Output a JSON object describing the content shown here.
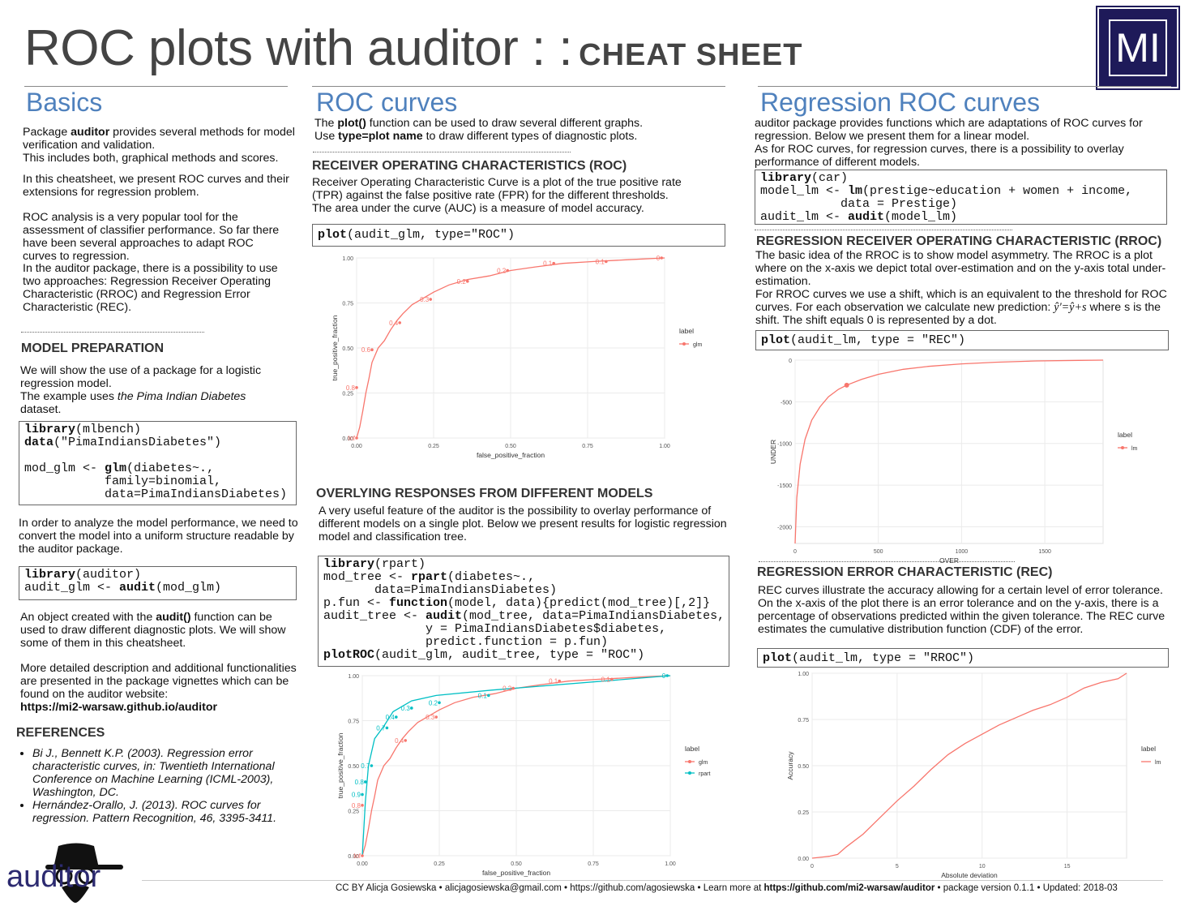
{
  "header": {
    "title": "ROC plots with auditor : :",
    "subtitle": "CHEAT SHEET",
    "logo": "MI"
  },
  "basics": {
    "title": "Basics",
    "p1_pre": "Package ",
    "p1_bold": "auditor",
    "p1_post": " provides several methods for model verification and validation.",
    "p1_line2": "This includes both, graphical methods and scores.",
    "p2": "In this cheatsheet, we present ROC curves and their extensions for regression problem.",
    "p3": "ROC analysis is a very popular tool for the assessment of classifier performance. So far there have been several approaches to adapt ROC curves to regression.",
    "p4": "In the auditor package, there is a possibility to use two approaches: Regression Receiver Operating Characteristic (RROC) and Regression Error Characteristic (REC).",
    "model_prep_title": "MODEL PREPARATION",
    "mp1": "We will show the use of a package for a logistic regression model.",
    "mp2_pre": "The example uses ",
    "mp2_italic": "the Pima Indian Diabetes",
    "mp2_post": " dataset.",
    "code1": [
      "library(mlbench)",
      "data(\"PimaIndiansDiabetes\")",
      "",
      "mod_glm <- glm(diabetes~.,",
      "           family=binomial,",
      "           data=PimaIndiansDiabetes)"
    ],
    "mp3": "In order to analyze the model performance, we need to convert the model into a uniform structure readable by the auditor package.",
    "code2": [
      "library(auditor)",
      "audit_glm <- audit(mod_glm)"
    ],
    "mp4_pre": "An object created with the ",
    "mp4_bold": "audit()",
    "mp4_post": " function can be used to draw different diagnostic plots. We will show some of them in this cheatsheet.",
    "mp5": "More detailed description and additional functionalities are presented in the package vignettes which can be found on the auditor website:",
    "mp5_link": "https://mi2-warsaw.github.io/auditor",
    "refs_title": "REFERENCES",
    "refs": [
      "Bi J., Bennett K.P. (2003). Regression error characteristic curves, in: Twentieth  International Conference on Machine Learning (ICML-2003), Washington, DC.",
      "Hernández-Orallo, J. (2013). ROC curves for regression. Pattern Recognition, 46, 3395-3411."
    ],
    "auditor_logo": "auditor"
  },
  "roc": {
    "title": "ROC curves",
    "p1_pre": "The ",
    "p1_bold": "plot()",
    "p1_post": " function can be used to draw several different graphs.",
    "p2_pre": "Use ",
    "p2_bold": "type=plot name",
    "p2_post": " to draw different types of diagnostic plots.",
    "roc_title": "RECEIVER OPERATING CHARACTERISTICS (ROC)",
    "roc_p": "Receiver Operating Characteristic Curve is a plot of the true positive rate (TPR) against the false positive rate (FPR) for the different thresholds.",
    "roc_p2": "The area under the curve (AUC) is a measure of model accuracy.",
    "code3": "plot(audit_glm, type=\"ROC\")",
    "overlay_title": "OVERLYING RESPONSES FROM DIFFERENT MODELS",
    "overlay_p": "A very useful feature of the auditor is the possibility to overlay performance of different models on a single plot. Below we present results for logistic regression model and classification tree.",
    "code4": [
      "library(rpart)",
      "mod_tree <- rpart(diabetes~.,",
      "       data=PimaIndiansDiabetes)",
      "p.fun <- function(model, data){predict(mod_tree)[,2]}",
      "audit_tree <- audit(mod_tree, data=PimaIndiansDiabetes,",
      "              y = PimaIndiansDiabetes$diabetes,",
      "              predict.function = p.fun)",
      "plotROC(audit_glm, audit_tree, type = \"ROC\")"
    ]
  },
  "regression": {
    "title": "Regression  ROC curves",
    "p1": "auditor package provides functions which are adaptations of ROC curves for regression. Below we present them for a linear model.",
    "p2": "As for ROC curves, for regression curves, there is a possibility to overlay performance of different models.",
    "code5": [
      "library(car)",
      "model_lm <- lm(prestige~education + women + income,",
      "           data = Prestige)",
      "audit_lm <- audit(model_lm)"
    ],
    "rroc_title": "REGRESSION RECEIVER OPERATING CHARACTERISTIC (RROC)",
    "rroc_p": "The basic idea of the RROC is to show model asymmetry. The RROC is a plot where on the x-axis we depict total over-estimation and on the y-axis total under-estimation.",
    "rroc_p2_pre": "For RROC curves we use a shift, which is an equivalent to the threshold for ROC curves. For each observation we calculate new prediction: ",
    "rroc_formula": "ŷ'=ŷ+s",
    "rroc_p2_post": " where s is the shift. The shift equals 0 is represented by a dot.",
    "code6": "plot(audit_lm, type = \"REC\")",
    "rec_title": "REGRESSION ERROR CHARACTERISTIC (REC)",
    "rec_p": "REC curves illustrate the accuracy allowing for a certain level of error tolerance.",
    "rec_p2": "On the x-axis of the plot there is an error tolerance and on the y-axis, there is a percentage of observations predicted within the given tolerance.  The REC curve estimates the cumulative distribution function (CDF) of the error.",
    "code7": "plot(audit_lm, type = \"RROC\")"
  },
  "footer": {
    "text": "CC BY Alicja Gosiewska •  alicjagosiewska@gmail.com • https://github.com/agosiewska •  Learn more at ",
    "link": "https://github.com/mi2-warsaw/auditor",
    "text2": "  •  package version  0.1.1 •  Updated: 2018-03"
  },
  "colors": {
    "glm": "#f8766d",
    "rpart": "#00bfc4",
    "heading": "#4f81bd",
    "logo_bg": "#1e1a59"
  },
  "chart_data": [
    {
      "type": "line",
      "id": "roc1",
      "xlabel": "false_positive_fraction",
      "ylabel": "true_positive_fraction",
      "xlim": [
        0,
        1
      ],
      "ylim": [
        0,
        1
      ],
      "xticks": [
        "0.00",
        "0.25",
        "0.50",
        "0.75",
        "1.00"
      ],
      "yticks": [
        "0.00",
        "0.25",
        "0.50",
        "0.75",
        "1.00"
      ],
      "legend_title": "label",
      "legend_position": "right",
      "series": [
        {
          "name": "glm",
          "color": "#f8766d",
          "x": [
            0,
            0.01,
            0.02,
            0.03,
            0.04,
            0.05,
            0.07,
            0.09,
            0.11,
            0.13,
            0.15,
            0.18,
            0.21,
            0.25,
            0.3,
            0.36,
            0.43,
            0.5,
            0.58,
            0.67,
            0.77,
            0.88,
            1
          ],
          "y": [
            0,
            0.06,
            0.15,
            0.25,
            0.33,
            0.42,
            0.5,
            0.54,
            0.6,
            0.65,
            0.69,
            0.74,
            0.77,
            0.81,
            0.85,
            0.88,
            0.9,
            0.93,
            0.95,
            0.97,
            0.98,
            0.99,
            1
          ]
        }
      ],
      "labels": [
        {
          "text": "Inf",
          "x": 0.0,
          "y": 0.0
        },
        {
          "text": "0.8",
          "x": 0.0,
          "y": 0.28
        },
        {
          "text": "0.6",
          "x": 0.05,
          "y": 0.49
        },
        {
          "text": "0.4",
          "x": 0.14,
          "y": 0.64
        },
        {
          "text": "0.3",
          "x": 0.24,
          "y": 0.77
        },
        {
          "text": "0.2",
          "x": 0.36,
          "y": 0.87
        },
        {
          "text": "0.2",
          "x": 0.49,
          "y": 0.93
        },
        {
          "text": "0.1",
          "x": 0.64,
          "y": 0.97
        },
        {
          "text": "0.1",
          "x": 0.81,
          "y": 0.98
        },
        {
          "text": "0",
          "x": 0.99,
          "y": 1.0
        }
      ]
    },
    {
      "type": "line",
      "id": "roc2",
      "xlabel": "false_positive_fraction",
      "ylabel": "true_positive_fraction",
      "xlim": [
        0,
        1
      ],
      "ylim": [
        0,
        1
      ],
      "xticks": [
        "0.00",
        "0.25",
        "0.50",
        "0.75",
        "1.00"
      ],
      "yticks": [
        "0.00",
        "0.25",
        "0.50",
        "0.75",
        "1.00"
      ],
      "legend_title": "label",
      "legend_position": "right",
      "series": [
        {
          "name": "glm",
          "color": "#f8766d",
          "x": [
            0,
            0.01,
            0.02,
            0.03,
            0.04,
            0.05,
            0.07,
            0.09,
            0.11,
            0.13,
            0.15,
            0.18,
            0.21,
            0.25,
            0.3,
            0.36,
            0.43,
            0.5,
            0.58,
            0.67,
            0.77,
            0.88,
            1
          ],
          "y": [
            0,
            0.06,
            0.15,
            0.25,
            0.33,
            0.42,
            0.5,
            0.54,
            0.6,
            0.65,
            0.69,
            0.74,
            0.77,
            0.81,
            0.85,
            0.88,
            0.9,
            0.93,
            0.95,
            0.97,
            0.98,
            0.99,
            1
          ]
        },
        {
          "name": "rpart",
          "color": "#00bfc4",
          "x": [
            0,
            0.01,
            0.02,
            0.04,
            0.07,
            0.1,
            0.16,
            0.24,
            0.42,
            1.0
          ],
          "y": [
            0,
            0.3,
            0.5,
            0.65,
            0.72,
            0.8,
            0.86,
            0.89,
            0.92,
            1.0
          ]
        }
      ],
      "labels": [
        {
          "text": "Inf",
          "x": 0.0,
          "y": 0.0,
          "color": "#f8766d"
        },
        {
          "text": "0.8",
          "x": 0.0,
          "y": 0.28,
          "color": "#f8766d"
        },
        {
          "text": "0.9",
          "x": 0.0,
          "y": 0.34,
          "color": "#00bfc4"
        },
        {
          "text": "0.8",
          "x": 0.01,
          "y": 0.41,
          "color": "#00bfc4"
        },
        {
          "text": "0.7",
          "x": 0.03,
          "y": 0.5,
          "color": "#00bfc4"
        },
        {
          "text": "0.7",
          "x": 0.08,
          "y": 0.71,
          "color": "#00bfc4"
        },
        {
          "text": "0.4",
          "x": 0.11,
          "y": 0.77,
          "color": "#00bfc4"
        },
        {
          "text": "0.3",
          "x": 0.16,
          "y": 0.82,
          "color": "#00bfc4"
        },
        {
          "text": "0.2",
          "x": 0.25,
          "y": 0.85,
          "color": "#00bfc4"
        },
        {
          "text": "0.1",
          "x": 0.41,
          "y": 0.89,
          "color": "#00bfc4"
        },
        {
          "text": "0.4",
          "x": 0.14,
          "y": 0.64,
          "color": "#f8766d"
        },
        {
          "text": "0.3",
          "x": 0.24,
          "y": 0.77,
          "color": "#f8766d"
        },
        {
          "text": "0.2",
          "x": 0.49,
          "y": 0.93,
          "color": "#f8766d"
        },
        {
          "text": "0.1",
          "x": 0.64,
          "y": 0.97,
          "color": "#f8766d"
        },
        {
          "text": "0.1",
          "x": 0.81,
          "y": 0.98,
          "color": "#f8766d"
        },
        {
          "text": "0",
          "x": 0.99,
          "y": 1.0,
          "color": "#00bfc4"
        }
      ]
    },
    {
      "type": "line",
      "id": "rroc",
      "xlabel": "OVER",
      "ylabel": "UNDER",
      "xlim": [
        0,
        1850
      ],
      "ylim": [
        -2200,
        0
      ],
      "xticks": [
        "0",
        "500",
        "1000",
        "1500"
      ],
      "xtickvals": [
        0,
        500,
        1000,
        1500
      ],
      "yticks": [
        "0",
        "-500",
        "-1000",
        "-1500",
        "-2000"
      ],
      "ytickvals": [
        0,
        -500,
        -1000,
        -1500,
        -2000
      ],
      "legend_title": "label",
      "legend_position": "right",
      "series": [
        {
          "name": "lm",
          "color": "#f8766d",
          "x": [
            0,
            10,
            30,
            60,
            100,
            150,
            200,
            260,
            310,
            400,
            500,
            650,
            800,
            1000,
            1200,
            1450,
            1700,
            1850
          ],
          "y": [
            -2200,
            -1650,
            -1250,
            -950,
            -720,
            -560,
            -440,
            -350,
            -300,
            -230,
            -170,
            -110,
            -75,
            -45,
            -25,
            -10,
            -3,
            0
          ]
        }
      ],
      "point": {
        "x": 310,
        "y": -300
      }
    },
    {
      "type": "line",
      "id": "rec",
      "xlabel": "Absolute deviation",
      "ylabel": "Accuracy",
      "xlim": [
        0,
        18.5
      ],
      "ylim": [
        0,
        1
      ],
      "xticks": [
        "0",
        "5",
        "10",
        "15"
      ],
      "xtickvals": [
        0,
        5,
        10,
        15
      ],
      "yticks": [
        "0.00",
        "0.25",
        "0.50",
        "0.75",
        "1.00"
      ],
      "ytickvals": [
        0,
        0.25,
        0.5,
        0.75,
        1
      ],
      "legend_title": "label",
      "legend_position": "right",
      "series": [
        {
          "name": "lm",
          "color": "#f8766d",
          "x": [
            0,
            1,
            1.5,
            2,
            3,
            4,
            5,
            6,
            7,
            8,
            9,
            10,
            11,
            12,
            13,
            14,
            15,
            16,
            17,
            18,
            18.5
          ],
          "y": [
            0,
            0.01,
            0.02,
            0.06,
            0.13,
            0.22,
            0.31,
            0.39,
            0.48,
            0.56,
            0.62,
            0.67,
            0.72,
            0.76,
            0.8,
            0.83,
            0.87,
            0.92,
            0.95,
            0.97,
            1.0
          ]
        }
      ]
    }
  ]
}
